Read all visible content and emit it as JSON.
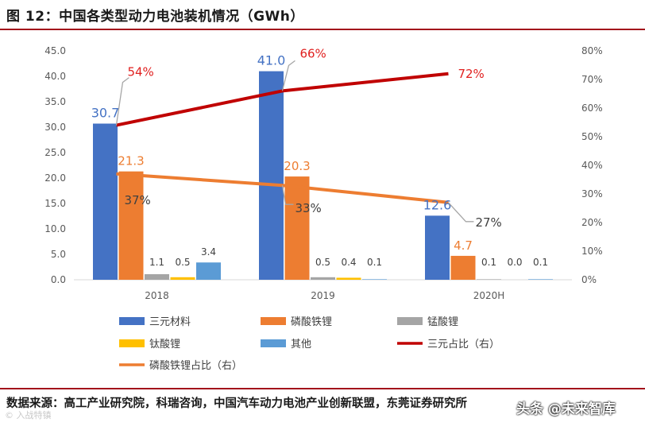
{
  "title": "图 12：中国各类型动力电池装机情况（GWh）",
  "source": "数据来源：高工产业研究院，科瑞咨询，中国汽车动力电池产业创新联盟，东莞证券研究所",
  "watermark_left": "© 入战特镇",
  "watermark_right": "头条 @未来智库",
  "colors": {
    "ternary": "#4472c4",
    "lfp": "#ed7d31",
    "lmo": "#a5a5a5",
    "lto": "#ffc000",
    "other": "#5b9bd5",
    "ternary_share": "#c00000",
    "lfp_share": "#ed7d31"
  },
  "chart_data": {
    "type": "bar",
    "categories": [
      "2018",
      "2019",
      "2020H"
    ],
    "series": [
      {
        "name": "三元材料",
        "values": [
          30.7,
          41.0,
          12.6
        ],
        "labels": [
          "30.7",
          "41.0",
          "12.6"
        ]
      },
      {
        "name": "磷酸铁锂",
        "values": [
          21.3,
          20.3,
          4.7
        ],
        "labels": [
          "21.3",
          "20.3",
          "4.7"
        ]
      },
      {
        "name": "锰酸锂",
        "values": [
          1.1,
          0.5,
          0.1
        ],
        "labels": [
          "1.1",
          "0.5",
          "0.1"
        ]
      },
      {
        "name": "钛酸锂",
        "values": [
          0.5,
          0.4,
          0.0
        ],
        "labels": [
          "0.5",
          "0.4",
          "0.0"
        ]
      },
      {
        "name": "其他",
        "values": [
          3.4,
          0.1,
          0.1
        ],
        "labels": [
          "3.4",
          "0.1",
          "0.1"
        ]
      }
    ],
    "line_series": [
      {
        "name": "三元占比（右）",
        "values": [
          54,
          66,
          72
        ],
        "labels": [
          "54%",
          "66%",
          "72%"
        ]
      },
      {
        "name": "磷酸铁锂占比（右）",
        "values": [
          37,
          33,
          27
        ],
        "labels": [
          "37%",
          "33%",
          "27%"
        ]
      }
    ],
    "y_left": {
      "min": 0,
      "max": 45,
      "step": 5,
      "ticks": [
        "0.0",
        "5.0",
        "10.0",
        "15.0",
        "20.0",
        "25.0",
        "30.0",
        "35.0",
        "40.0",
        "45.0"
      ]
    },
    "y_right": {
      "min": 0,
      "max": 80,
      "step": 10,
      "ticks": [
        "0%",
        "10%",
        "20%",
        "30%",
        "40%",
        "50%",
        "60%",
        "70%",
        "80%"
      ]
    },
    "legend_position": "bottom"
  }
}
